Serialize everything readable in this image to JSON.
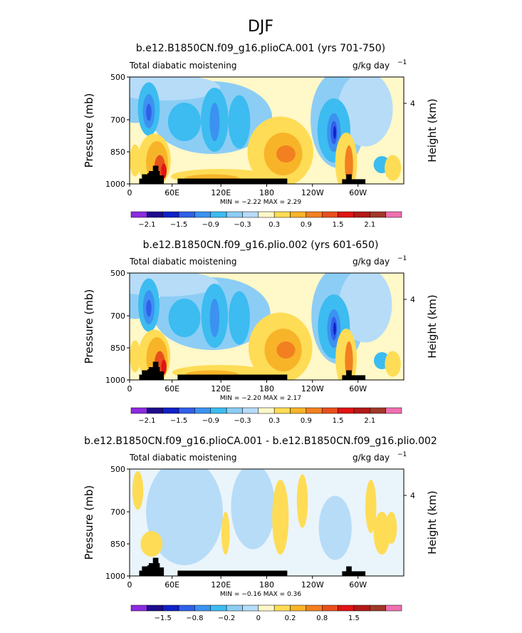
{
  "title": "DJF",
  "colors": {
    "levels": [
      "#8c2ae0",
      "#1e0a8c",
      "#1020c8",
      "#3060ea",
      "#3c92f0",
      "#3cbcf0",
      "#8ccdf5",
      "#b6dcf8",
      "#fff8c8",
      "#fedc55",
      "#f8b428",
      "#f28020",
      "#e8501c",
      "#e01414",
      "#b41818",
      "#a03828",
      "#f070b0"
    ],
    "land": "#000000"
  },
  "chart_data": [
    {
      "type": "heatmap",
      "title": "b.e12.B1850CN.f09_g16.plioCA.001 (yrs 701-750)",
      "left_subtitle": "Total diabatic moistening",
      "units_main": "g/kg day",
      "units_exp": "−1",
      "ylabel": "Pressure (mb)",
      "ylabel_right": "Height (km)",
      "xticks": [
        "0",
        "60E",
        "120E",
        "180",
        "120W",
        "60W"
      ],
      "yticks": [
        "500",
        "700",
        "850",
        "1000"
      ],
      "right_ticks": [
        "4"
      ],
      "ylim": [
        1000,
        500
      ],
      "stats": "MIN =   −2.22   MAX =   2.29",
      "colorbar_labels": [
        "−2.1",
        "−1.5",
        "−0.9",
        "−0.3",
        "0.3",
        "0.9",
        "1.5",
        "2.1"
      ]
    },
    {
      "type": "heatmap",
      "title": "b.e12.B1850CN.f09_g16.plio.002 (yrs 601-650)",
      "left_subtitle": "Total diabatic moistening",
      "units_main": "g/kg day",
      "units_exp": "−1",
      "ylabel": "Pressure (mb)",
      "ylabel_right": "Height (km)",
      "xticks": [
        "0",
        "60E",
        "120E",
        "180",
        "120W",
        "60W"
      ],
      "yticks": [
        "500",
        "700",
        "850",
        "1000"
      ],
      "right_ticks": [
        "4"
      ],
      "ylim": [
        1000,
        500
      ],
      "stats": "MIN =   −2.20   MAX =   2.17",
      "colorbar_labels": [
        "−2.1",
        "−1.5",
        "−0.9",
        "−0.3",
        "0.3",
        "0.9",
        "1.5",
        "2.1"
      ]
    },
    {
      "type": "heatmap",
      "title": "b.e12.B1850CN.f09_g16.plioCA.001 - b.e12.B1850CN.f09_g16.plio.002",
      "left_subtitle": "Total diabatic moistening",
      "units_main": "g/kg day",
      "units_exp": "−1",
      "ylabel": "Pressure (mb)",
      "ylabel_right": "Height (km)",
      "xticks": [
        "0",
        "60E",
        "120E",
        "180",
        "120W",
        "60W"
      ],
      "yticks": [
        "500",
        "700",
        "850",
        "1000"
      ],
      "right_ticks": [
        "4"
      ],
      "ylim": [
        1000,
        500
      ],
      "stats": "MIN =   −0.16   MAX =   0.36",
      "colorbar_labels": [
        "−1.5",
        "−0.8",
        "−0.2",
        "0",
        "0.2",
        "0.8",
        "1.5"
      ]
    }
  ]
}
